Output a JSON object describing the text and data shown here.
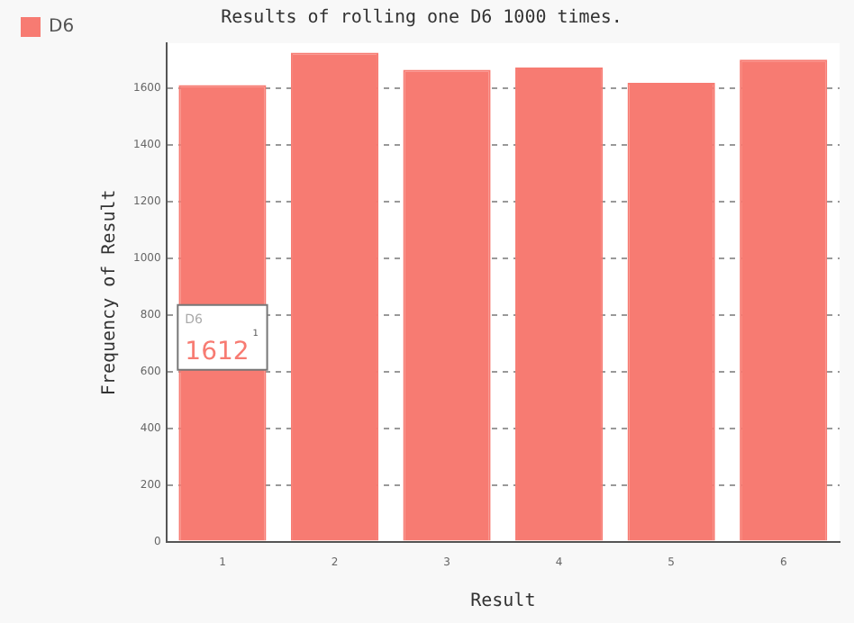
{
  "chart_data": {
    "type": "bar",
    "title": "Results of rolling one D6 1000 times.",
    "xlabel": "Result",
    "ylabel": "Frequency of Result",
    "categories": [
      "1",
      "2",
      "3",
      "4",
      "5",
      "6"
    ],
    "series": [
      {
        "name": "D6",
        "color": "#f77b72",
        "values": [
          1612,
          1727,
          1666,
          1674,
          1620,
          1702
        ]
      }
    ],
    "ylim": [
      0,
      1760
    ],
    "yticks": [
      0,
      200,
      400,
      600,
      800,
      1000,
      1200,
      1400,
      1600
    ],
    "grid": "y",
    "legend": "top left",
    "annotations": [
      "1612"
    ]
  }
}
